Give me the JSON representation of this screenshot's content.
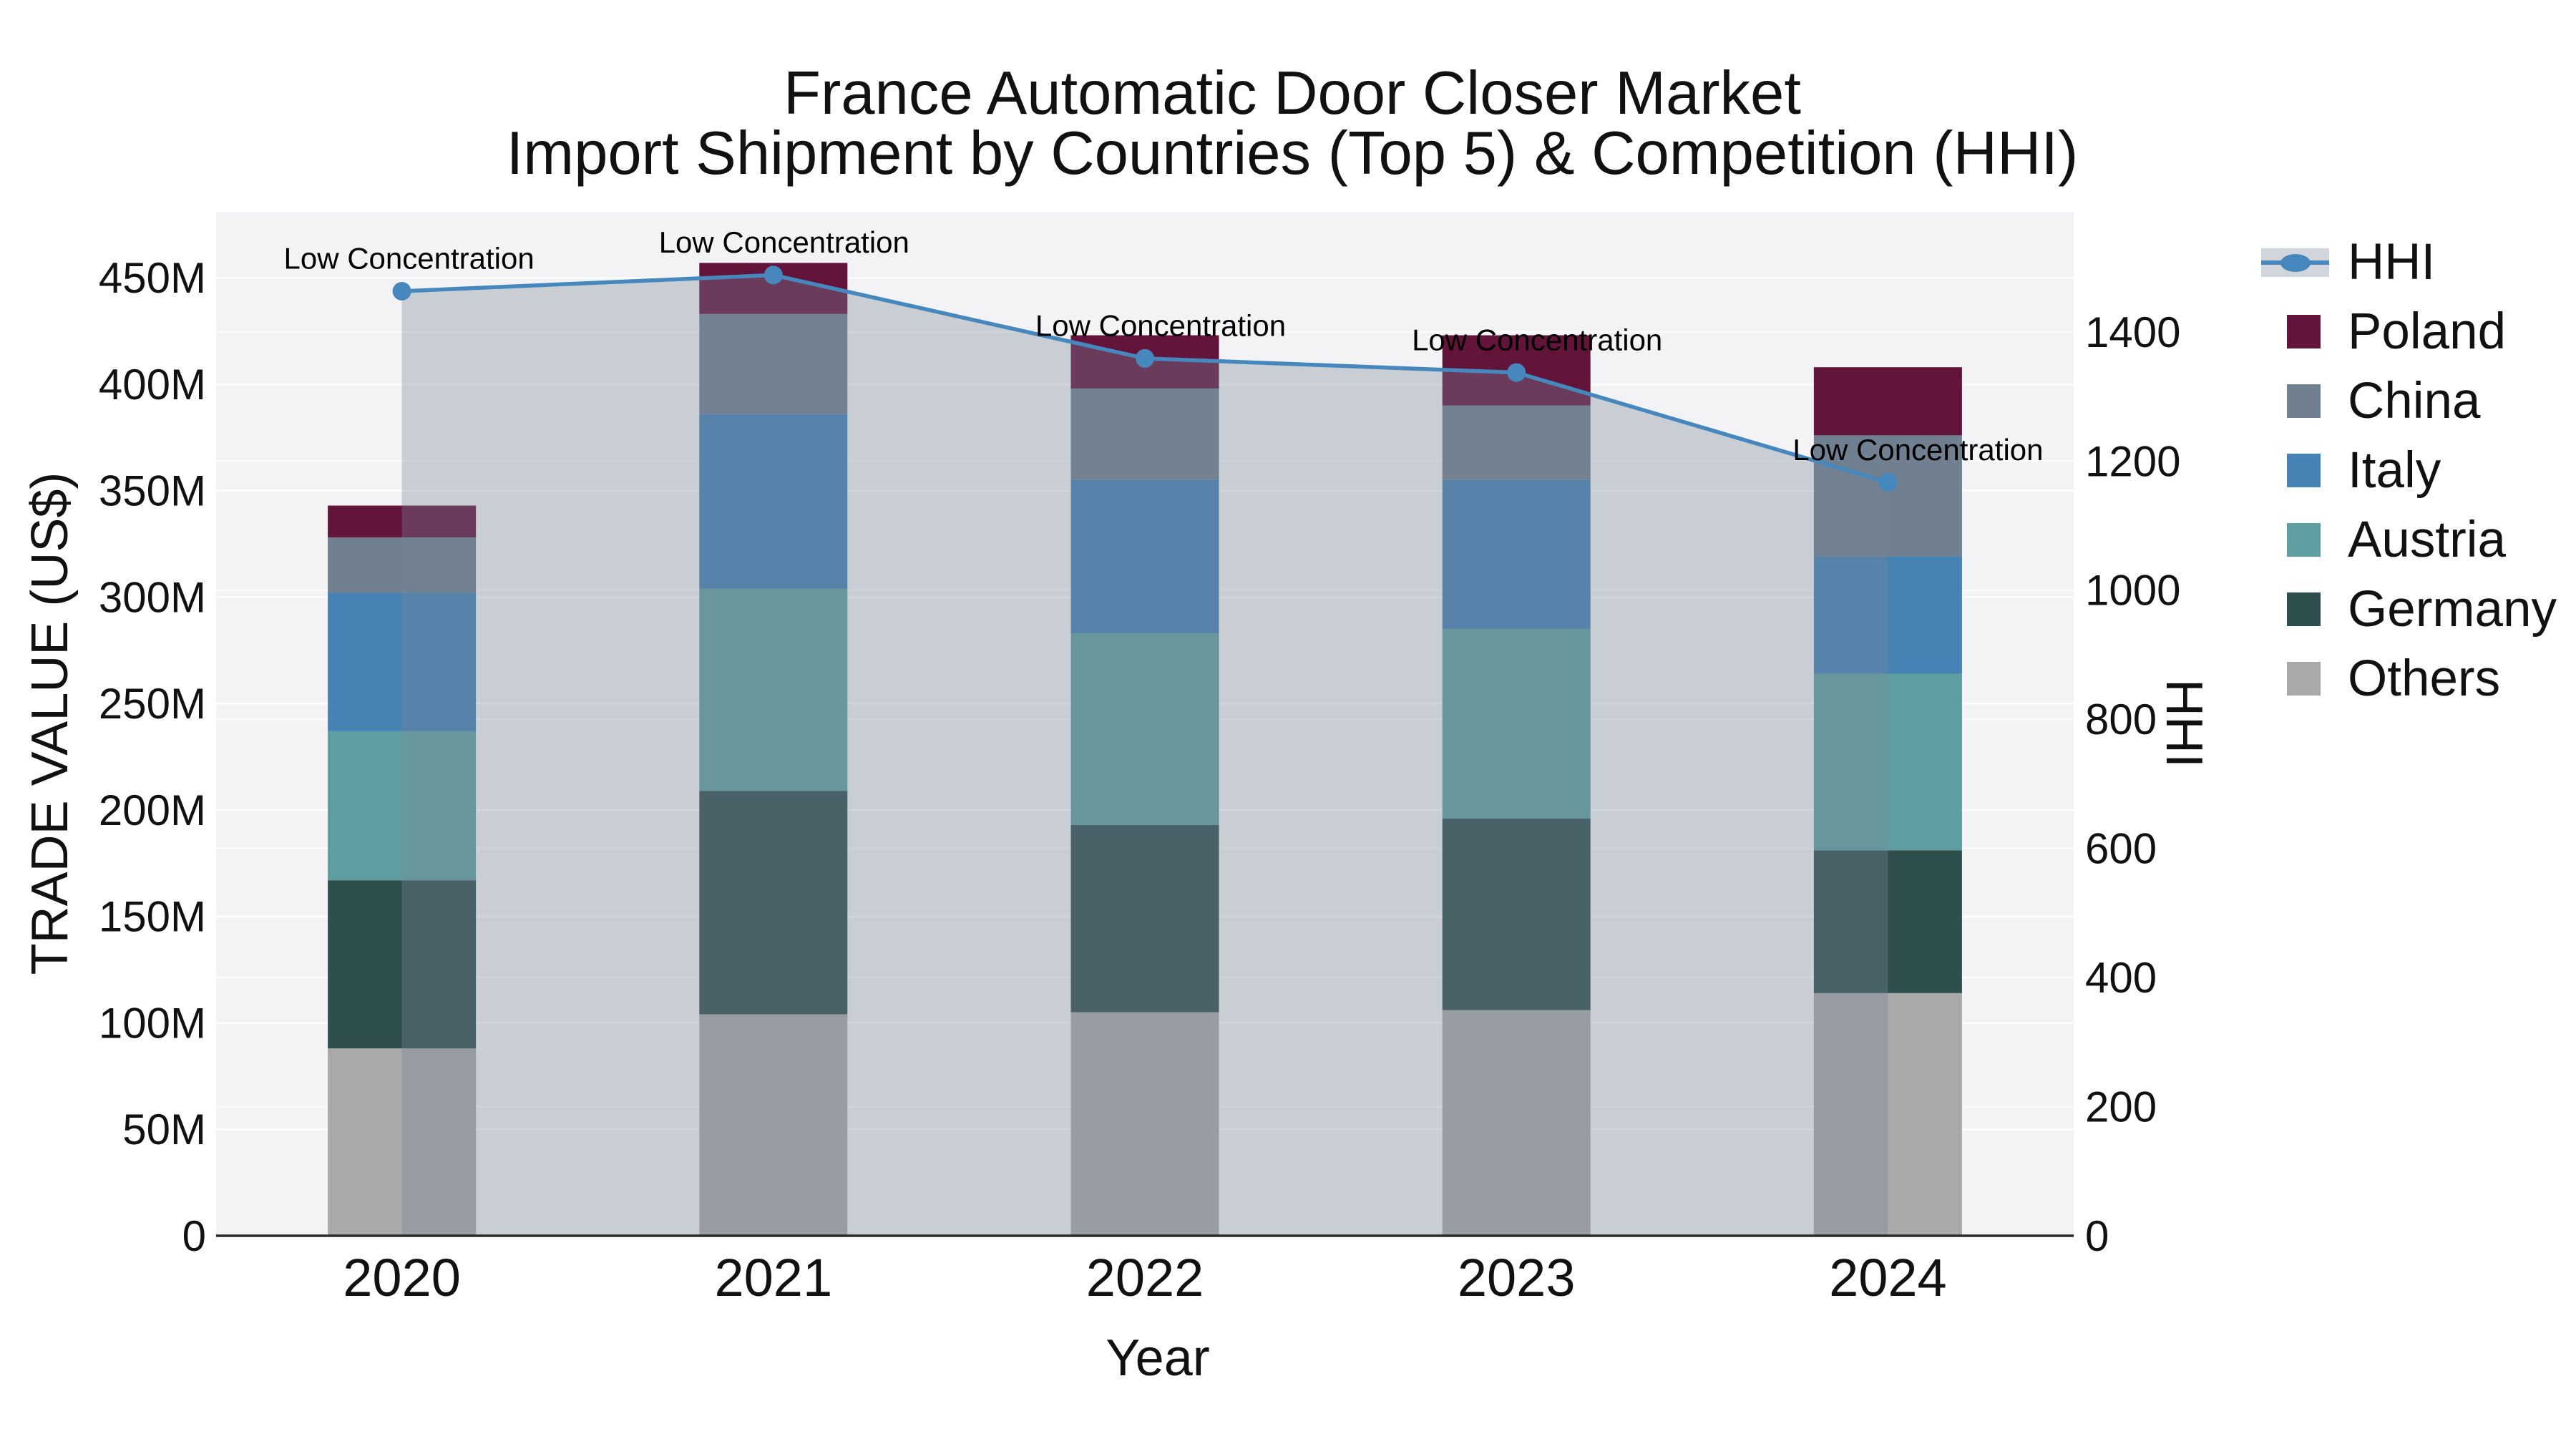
{
  "title": {
    "line1": "France Automatic Door Closer Market",
    "line2": "Import Shipment by Countries (Top 5) & Competition (HHI)"
  },
  "axes": {
    "y_left_title": "TRADE VALUE (US$)",
    "y_right_title": "HHI",
    "x_title": "Year"
  },
  "chart_data": {
    "type": "bar+line",
    "subtype": "stacked bars (left axis, trade value US$ millions) with HHI line on right axis",
    "title": "France Automatic Door Closer Market — Import Shipment by Countries (Top 5) & Competition (HHI)",
    "xlabel": "Year",
    "ylabel_left": "TRADE VALUE (US$)",
    "ylabel_right": "HHI",
    "categories": [
      "2020",
      "2021",
      "2022",
      "2023",
      "2024"
    ],
    "stack_order_bottom_to_top": [
      "Others",
      "Germany",
      "Austria",
      "Italy",
      "China",
      "Poland"
    ],
    "series": [
      {
        "name": "Others",
        "color": "#a9a9a9",
        "values": [
          88,
          104,
          105,
          106,
          114
        ]
      },
      {
        "name": "Germany",
        "color": "#2f4f4f",
        "values": [
          79,
          105,
          88,
          90,
          67
        ]
      },
      {
        "name": "Austria",
        "color": "#5f9ea0",
        "values": [
          70,
          95,
          90,
          89,
          83
        ]
      },
      {
        "name": "Italy",
        "color": "#4682b4",
        "values": [
          65,
          82,
          72,
          70,
          55
        ]
      },
      {
        "name": "China",
        "color": "#708090",
        "values": [
          26,
          47,
          43,
          35,
          57
        ]
      },
      {
        "name": "Poland",
        "color": "#63143a",
        "values": [
          15,
          24,
          25,
          33,
          32
        ]
      }
    ],
    "totals": [
      343,
      457,
      423,
      423,
      408
    ],
    "line_series": {
      "name": "HHI",
      "color": "#4687bd",
      "fill_color": "rgba(119,136,153,0.34)",
      "values": [
        1463,
        1488,
        1359,
        1337,
        1167
      ]
    },
    "annotations": [
      {
        "text": "Low Concentration",
        "category": "2020"
      },
      {
        "text": "Low Concentration",
        "category": "2021"
      },
      {
        "text": "Low Concentration",
        "category": "2022"
      },
      {
        "text": "Low Concentration",
        "category": "2023"
      },
      {
        "text": "Low Concentration",
        "category": "2024"
      }
    ],
    "y_left": {
      "lim": [
        0,
        481
      ],
      "ticks": [
        0,
        50,
        100,
        150,
        200,
        250,
        300,
        350,
        400,
        450
      ],
      "tick_labels": [
        "0",
        "50M",
        "100M",
        "150M",
        "200M",
        "250M",
        "300M",
        "350M",
        "400M",
        "450M"
      ]
    },
    "y_right": {
      "lim": [
        0,
        1586
      ],
      "ticks": [
        0,
        200,
        400,
        600,
        800,
        1000,
        1200,
        1400
      ],
      "tick_labels": [
        "0",
        "200",
        "400",
        "600",
        "800",
        "1000",
        "1200",
        "1400"
      ]
    },
    "grid": "on, white gridlines for both axes",
    "legend_position": "right"
  },
  "legend": {
    "items": [
      {
        "label": "HHI",
        "type": "line",
        "color": "#4687bd"
      },
      {
        "label": "Poland",
        "type": "patch",
        "color": "#63143a"
      },
      {
        "label": "China",
        "type": "patch",
        "color": "#708090"
      },
      {
        "label": "Italy",
        "type": "patch",
        "color": "#4682b4"
      },
      {
        "label": "Austria",
        "type": "patch",
        "color": "#5f9ea0"
      },
      {
        "label": "Germany",
        "type": "patch",
        "color": "#2f4f4f"
      },
      {
        "label": "Others",
        "type": "patch",
        "color": "#a9a9a9"
      }
    ]
  }
}
